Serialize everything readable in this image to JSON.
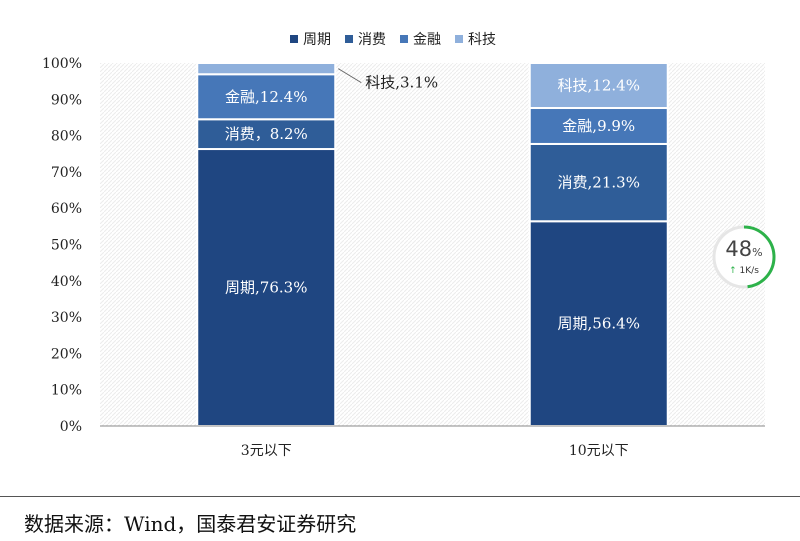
{
  "chart_data": {
    "type": "bar",
    "stacked": true,
    "categories": [
      "3元以下",
      "10元以下"
    ],
    "series": [
      {
        "name": "周期",
        "values": [
          76.3,
          56.4
        ],
        "color": "#1f4681",
        "labels": [
          "周期,76.3%",
          "周期,56.4%"
        ]
      },
      {
        "name": "消费",
        "values": [
          8.2,
          21.3
        ],
        "color": "#2f5d98",
        "labels": [
          "消费，8.2%",
          "消费,21.3%"
        ]
      },
      {
        "name": "金融",
        "values": [
          12.4,
          9.9
        ],
        "color": "#4677b8",
        "labels": [
          "金融,12.4%",
          "金融,9.9%"
        ]
      },
      {
        "name": "科技",
        "values": [
          3.1,
          12.4
        ],
        "color": "#8fb0dc",
        "labels": [
          "科技,3.1%",
          "科技,12.4%"
        ]
      }
    ],
    "ylim": [
      0,
      100
    ],
    "yticks": [
      "0%",
      "10%",
      "20%",
      "30%",
      "40%",
      "50%",
      "60%",
      "70%",
      "80%",
      "90%",
      "100%"
    ],
    "legend_position": "top"
  },
  "source_text": "数据来源：Wind，国泰君安证券研究",
  "speed_widget": {
    "percent": "48",
    "percent_unit": "%",
    "arrow": "↑",
    "rate": "1K/s",
    "progress": 0.48,
    "color": "#2db24a"
  }
}
